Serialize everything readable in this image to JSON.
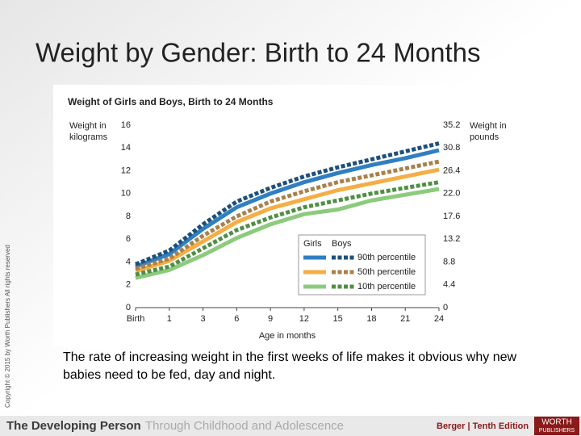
{
  "slide": {
    "title": "Weight by Gender: Birth to 24 Months",
    "caption": "The rate of increasing weight in the first weeks of life makes it obvious why new babies need to be fed, day and night.",
    "copyright": "Copyright © 2015 by Worth Publishers All rights reserved",
    "footer_bold": "The Developing Person",
    "footer_light": "Through Childhood and Adolescence",
    "edition": "Berger | Tenth Edition",
    "publisher": [
      "WORTH",
      "PUBLISHERS"
    ]
  },
  "chart_data": {
    "type": "line",
    "title": "Weight of Girls and Boys, Birth to 24 Months",
    "y_label": [
      "Weight in",
      "kilograms"
    ],
    "y2_label": [
      "Weight in",
      "pounds"
    ],
    "x_label": "Age in months",
    "categories": [
      "Birth",
      "1",
      "3",
      "6",
      "9",
      "12",
      "15",
      "18",
      "21",
      "24"
    ],
    "ylim": [
      0,
      16
    ],
    "yticks": [
      0,
      2,
      4,
      6,
      8,
      10,
      12,
      14,
      16
    ],
    "y2lim": [
      0,
      35.2
    ],
    "y2ticks": [
      0,
      4.4,
      8.8,
      13.2,
      17.6,
      {
        "value": 22,
        "label": "22.0"
      },
      26.4,
      30.8,
      35.2
    ],
    "legend_rows": [
      "90th percentile",
      "50th percentile",
      "10th percentile"
    ],
    "groups": [
      {
        "name": "Girls",
        "dashed": false,
        "series": [
          {
            "color": "#2f7fc1",
            "values": [
              3.6,
              4.7,
              6.9,
              8.8,
              10.0,
              11.0,
              11.8,
              12.5,
              13.1,
              13.8
            ]
          },
          {
            "color": "#f5ae45",
            "values": [
              3.2,
              4.1,
              5.8,
              7.5,
              8.7,
              9.5,
              10.3,
              10.9,
              11.5,
              12.1
            ]
          },
          {
            "color": "#8ccb7e",
            "values": [
              2.6,
              3.3,
              4.6,
              6.1,
              7.3,
              8.2,
              8.6,
              9.4,
              9.9,
              10.4
            ]
          }
        ]
      },
      {
        "name": "Boys",
        "dashed": true,
        "series": [
          {
            "color": "#1d4f7c",
            "values": [
              3.8,
              5.0,
              7.3,
              9.3,
              10.5,
              11.5,
              12.3,
              13.0,
              13.7,
              14.4
            ]
          },
          {
            "color": "#a9804a",
            "values": [
              3.4,
              4.3,
              6.3,
              8.0,
              9.3,
              10.2,
              11.0,
              11.6,
              12.2,
              12.8
            ]
          },
          {
            "color": "#4f8f45",
            "values": [
              2.9,
              3.6,
              5.2,
              6.8,
              7.9,
              8.8,
              9.4,
              10.0,
              10.5,
              11.0
            ]
          }
        ]
      }
    ]
  }
}
